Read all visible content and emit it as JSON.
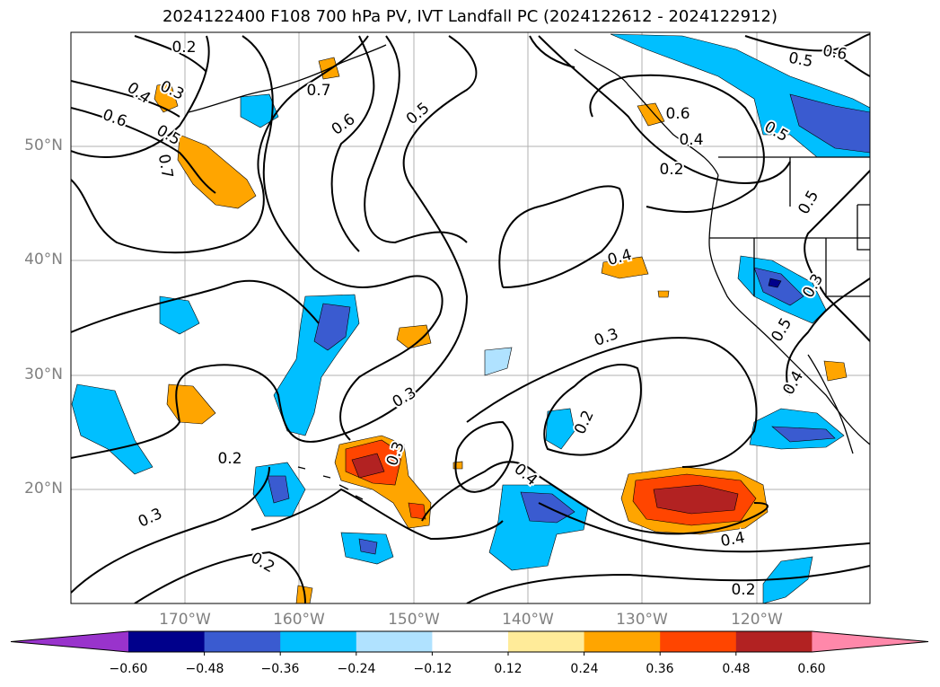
{
  "title": "2024122400 F108 700 hPa PV, IVT Landfall PC (2024122612 - 2024122912)",
  "lat_labels": [
    "50°N",
    "40°N",
    "30°N",
    "20°N"
  ],
  "lon_labels": [
    "170°W",
    "160°W",
    "150°W",
    "140°W",
    "130°W",
    "120°W"
  ],
  "contour_labels": [
    "0.2",
    "0.3",
    "0.4",
    "0.6",
    "0.5",
    "0.7",
    "0.7",
    "0.6",
    "0.5",
    "0.6",
    "0.5",
    "0.6",
    "0.5",
    "0.4",
    "0.5",
    "0.3",
    "0.5",
    "0.4",
    "0.3",
    "0.2",
    "0.4",
    "0.3",
    "0.3",
    "0.2",
    "0.4",
    "0.2",
    "0.2",
    "0.3",
    "0.2",
    "0.4"
  ],
  "colorbar": {
    "colors": [
      "#9933cc",
      "#00008b",
      "#3a5bd0",
      "#00bfff",
      "#b0e2ff",
      "#ffffff",
      "#ffeb99",
      "#ffa500",
      "#ff4500",
      "#b22222",
      "#ff88aa"
    ],
    "tick_labels": [
      "−0.60",
      "−0.48",
      "−0.36",
      "−0.24",
      "−0.12",
      "0.12",
      "0.24",
      "0.36",
      "0.48",
      "0.60"
    ]
  },
  "legend_colors": {
    "neg_light": "#b0e2ff",
    "neg_mid": "#00bfff",
    "neg_strong": "#3a5bd0",
    "neg_max": "#00008b",
    "pos_light": "#ffeb99",
    "pos_mid": "#ffa500",
    "pos_strong": "#ff4500",
    "pos_max": "#b22222"
  }
}
